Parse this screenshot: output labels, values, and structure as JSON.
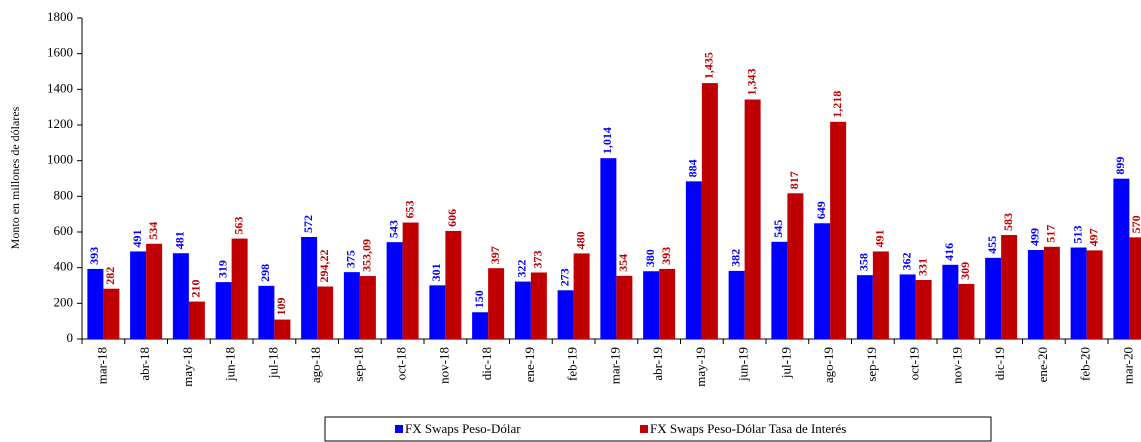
{
  "chart_data": {
    "type": "bar",
    "y_label": "Monto en millones de dólares",
    "categories": [
      "mar-18",
      "abr-18",
      "may-18",
      "jun-18",
      "jul-18",
      "ago-18",
      "sep-18",
      "oct-18",
      "nov-18",
      "dic-18",
      "ene-19",
      "feb-19",
      "mar-19",
      "abr-19",
      "may-19",
      "jun-19",
      "jul-19",
      "ago-19",
      "sep-19",
      "oct-19",
      "nov-19",
      "dic-19",
      "ene-20",
      "feb-20",
      "mar-20"
    ],
    "series": [
      {
        "name": "FX Swaps Peso-Dólar",
        "color": "#0000ff",
        "values": [
          393,
          491,
          481,
          319,
          298,
          572,
          375,
          543,
          301,
          150,
          322,
          273,
          1014,
          380,
          884,
          382,
          545,
          649,
          358,
          362,
          416,
          455,
          499,
          513,
          899
        ],
        "value_labels": [
          "393",
          "491",
          "481",
          "319",
          "298",
          "572",
          "375",
          "543",
          "301",
          "150",
          "322",
          "273",
          "1,014",
          "380",
          "884",
          "382",
          "545",
          "649",
          "358",
          "362",
          "416",
          "455",
          "499",
          "513",
          "899"
        ]
      },
      {
        "name": "FX Swaps Peso-Dólar Tasa de Interés",
        "color": "#c00000",
        "values": [
          282,
          534,
          210,
          563,
          109,
          294.22,
          353.09,
          653,
          606,
          397,
          373,
          480,
          354,
          393,
          1435,
          1343,
          817,
          1218,
          491,
          331,
          309,
          583,
          517,
          497,
          570
        ],
        "value_labels": [
          "282",
          "534",
          "210",
          "563",
          "109",
          "294,22",
          "353,09",
          "653",
          "606",
          "397",
          "373",
          "480",
          "354",
          "393",
          "1,435",
          "1,343",
          "817",
          "1,218",
          "491",
          "331",
          "309",
          "583",
          "517",
          "497",
          "570"
        ]
      }
    ],
    "ylim": [
      0,
      1800
    ],
    "yticks": [
      0,
      200,
      400,
      600,
      800,
      1000,
      1200,
      1400,
      1600,
      1800
    ],
    "grid": false
  }
}
